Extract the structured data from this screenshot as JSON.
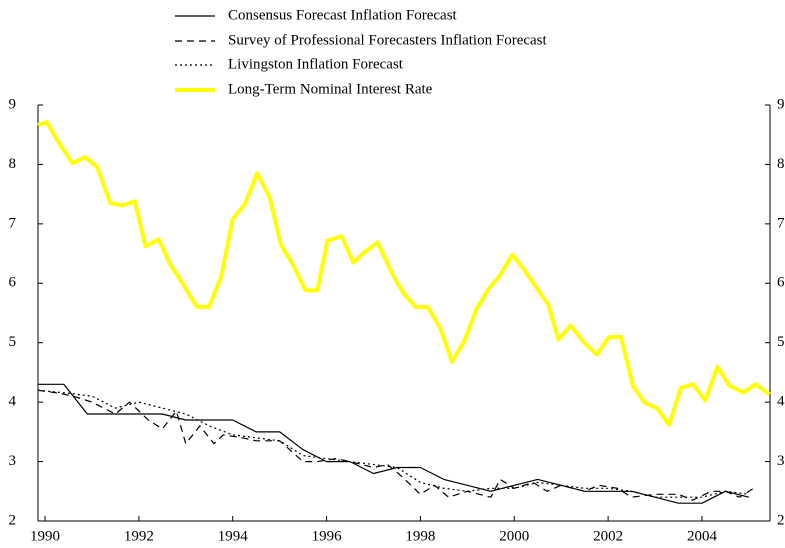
{
  "chart_data": {
    "type": "line",
    "series": [
      {
        "name": "Consensus Forecast Inflation Forecast",
        "color": "#000000",
        "dash": "solid",
        "width": 1.2,
        "x": [
          1989.85,
          1990.4,
          1990.9,
          1991.5,
          1992.5,
          1993,
          1994,
          1994.5,
          1995,
          1995.5,
          1996,
          1996.5,
          1997,
          1997.5,
          1998,
          1998.5,
          1999,
          1999.5,
          2000,
          2000.5,
          2001,
          2001.5,
          2002,
          2002.5,
          2003,
          2003.5,
          2004,
          2004.5,
          2005
        ],
        "values": [
          4.3,
          4.3,
          3.8,
          3.8,
          3.8,
          3.7,
          3.7,
          3.5,
          3.5,
          3.2,
          3.0,
          3.0,
          2.8,
          2.9,
          2.9,
          2.7,
          2.6,
          2.5,
          2.6,
          2.7,
          2.6,
          2.5,
          2.5,
          2.5,
          2.4,
          2.3,
          2.3,
          2.5,
          2.4
        ]
      },
      {
        "name": "Survey of Professional Forecasters Inflation Forecast",
        "color": "#000000",
        "dash": "dashed",
        "width": 1.2,
        "x": [
          1989.85,
          1990.3,
          1990.6,
          1991,
          1991.5,
          1991.8,
          1992.2,
          1992.5,
          1992.8,
          1993,
          1993.3,
          1993.6,
          1993.8,
          1994.2,
          1994.5,
          1995,
          1995.5,
          1995.8,
          1996.2,
          1996.5,
          1997,
          1997.3,
          1997.6,
          1998,
          1998.3,
          1998.6,
          1999,
          1999.5,
          1999.7,
          2000,
          2000.4,
          2000.7,
          2001,
          2001.5,
          2001.8,
          2002.2,
          2002.5,
          2003,
          2003.5,
          2003.8,
          2004.2,
          2004.5,
          2004.8,
          2005.1
        ],
        "values": [
          4.2,
          4.15,
          4.1,
          4.0,
          3.8,
          4.0,
          3.7,
          3.55,
          3.85,
          3.3,
          3.6,
          3.3,
          3.45,
          3.4,
          3.35,
          3.35,
          3.0,
          3.0,
          3.05,
          3.0,
          2.9,
          2.95,
          2.75,
          2.45,
          2.6,
          2.4,
          2.5,
          2.4,
          2.7,
          2.55,
          2.65,
          2.5,
          2.6,
          2.5,
          2.6,
          2.55,
          2.4,
          2.45,
          2.45,
          2.35,
          2.5,
          2.5,
          2.4,
          2.55
        ]
      },
      {
        "name": "Livingston Inflation Forecast",
        "color": "#000000",
        "dash": "dotted",
        "width": 1.2,
        "x": [
          1989.85,
          1990.5,
          1991,
          1991.5,
          1992,
          1992.5,
          1993,
          1993.5,
          1994,
          1994.5,
          1995,
          1995.5,
          1996,
          1996.5,
          1997,
          1997.5,
          1998,
          1998.5,
          1999,
          1999.5,
          2000,
          2000.5,
          2001,
          2001.5,
          2002,
          2002.5,
          2003,
          2003.5,
          2004,
          2004.5,
          2005
        ],
        "values": [
          4.2,
          4.15,
          4.1,
          3.9,
          4.0,
          3.9,
          3.8,
          3.6,
          3.45,
          3.4,
          3.35,
          3.1,
          3.05,
          3.0,
          2.95,
          2.9,
          2.65,
          2.55,
          2.5,
          2.55,
          2.55,
          2.65,
          2.6,
          2.55,
          2.55,
          2.5,
          2.4,
          2.4,
          2.4,
          2.5,
          2.45
        ]
      },
      {
        "name": "Long-Term Nominal Interest Rate",
        "color": "#ffff00",
        "dash": "solid",
        "width": 4,
        "x": [
          1989.85,
          1990.04,
          1990.26,
          1990.58,
          1990.86,
          1991.11,
          1991.39,
          1991.65,
          1991.91,
          1992.14,
          1992.42,
          1992.68,
          1992.93,
          1993.23,
          1993.49,
          1993.75,
          1994.0,
          1994.26,
          1994.52,
          1994.78,
          1995.03,
          1995.29,
          1995.55,
          1995.8,
          1996.02,
          1996.32,
          1996.57,
          1996.85,
          1997.09,
          1997.39,
          1997.64,
          1997.9,
          1998.16,
          1998.42,
          1998.67,
          1998.93,
          1999.19,
          1999.44,
          1999.7,
          1999.96,
          2000.21,
          2000.47,
          2000.73,
          2000.94,
          2001.2,
          2001.5,
          2001.76,
          2002.01,
          2002.27,
          2002.53,
          2002.78,
          2003.04,
          2003.3,
          2003.55,
          2003.81,
          2004.07,
          2004.33,
          2004.58,
          2004.88,
          2005.14,
          2005.44
        ],
        "values": [
          8.66,
          8.71,
          8.41,
          8.02,
          8.12,
          7.96,
          7.35,
          7.31,
          7.38,
          6.62,
          6.74,
          6.3,
          6.0,
          5.61,
          5.6,
          6.1,
          7.08,
          7.33,
          7.85,
          7.46,
          6.64,
          6.3,
          5.88,
          5.88,
          6.72,
          6.79,
          6.35,
          6.55,
          6.69,
          6.17,
          5.83,
          5.6,
          5.6,
          5.25,
          4.68,
          5.02,
          5.56,
          5.89,
          6.14,
          6.48,
          6.23,
          5.93,
          5.63,
          5.05,
          5.29,
          4.99,
          4.8,
          5.09,
          5.1,
          4.27,
          3.99,
          3.9,
          3.62,
          4.24,
          4.3,
          4.03,
          4.6,
          4.28,
          4.16,
          4.3,
          4.13
        ]
      }
    ],
    "xlim": [
      1989.85,
      2005.45
    ],
    "xticks": [
      1990,
      1992,
      1994,
      1996,
      1998,
      2000,
      2002,
      2004
    ],
    "ylim": [
      2,
      9
    ],
    "yticks": [
      2,
      3,
      4,
      5,
      6,
      7,
      8,
      9
    ],
    "y2lim": [
      2,
      9
    ],
    "y2ticks": [
      2,
      3,
      4,
      5,
      6,
      7,
      8,
      9
    ],
    "grid": false
  }
}
